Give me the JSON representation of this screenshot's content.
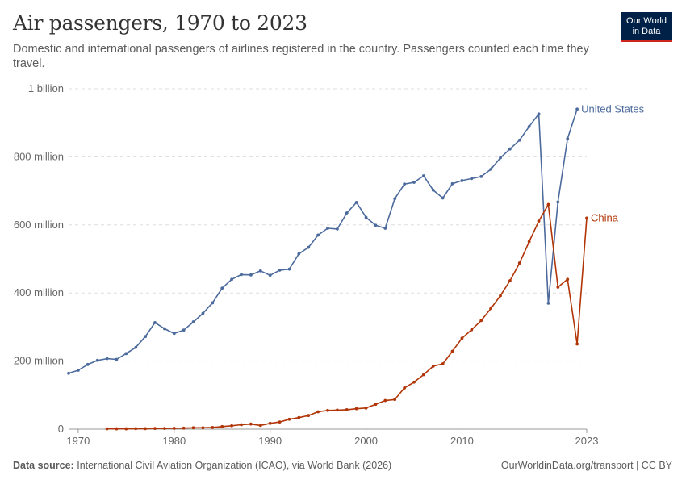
{
  "header": {
    "title": "Air passengers, 1970 to 2023",
    "subtitle": "Domestic and international passengers of airlines registered in the country. Passengers counted each time they travel.",
    "logo_line1": "Our World",
    "logo_line2": "in Data"
  },
  "footer": {
    "source_label": "Data source:",
    "source_text": "International Civil Aviation Organization (ICAO), via World Bank (2026)",
    "right_text": "OurWorldinData.org/transport | CC BY"
  },
  "chart_data": {
    "type": "line",
    "title": "Air passengers, 1970 to 2023",
    "xlabel": "",
    "ylabel": "",
    "xlim": [
      1969,
      2023
    ],
    "ylim": [
      0,
      1000000000
    ],
    "y_ticks": [
      {
        "value": 0,
        "label": "0"
      },
      {
        "value": 200000000,
        "label": "200 million"
      },
      {
        "value": 400000000,
        "label": "400 million"
      },
      {
        "value": 600000000,
        "label": "600 million"
      },
      {
        "value": 800000000,
        "label": "800 million"
      },
      {
        "value": 1000000000,
        "label": "1 billion"
      }
    ],
    "x_ticks": [
      {
        "value": 1970,
        "label": "1970"
      },
      {
        "value": 1980,
        "label": "1980"
      },
      {
        "value": 1990,
        "label": "1990"
      },
      {
        "value": 2000,
        "label": "2000"
      },
      {
        "value": 2010,
        "label": "2010"
      },
      {
        "value": 2023,
        "label": "2023"
      }
    ],
    "grid": "horizontal dashed",
    "legend": "labels at line ends (right)",
    "series": [
      {
        "name": "United States",
        "color": "#4c6a9c",
        "points": [
          [
            1969,
            164000000
          ],
          [
            1970,
            173000000
          ],
          [
            1971,
            190000000
          ],
          [
            1972,
            202000000
          ],
          [
            1973,
            207000000
          ],
          [
            1974,
            205000000
          ],
          [
            1975,
            222000000
          ],
          [
            1976,
            240000000
          ],
          [
            1977,
            272000000
          ],
          [
            1978,
            313000000
          ],
          [
            1979,
            295000000
          ],
          [
            1980,
            281000000
          ],
          [
            1981,
            291000000
          ],
          [
            1982,
            315000000
          ],
          [
            1983,
            340000000
          ],
          [
            1984,
            371000000
          ],
          [
            1985,
            414000000
          ],
          [
            1986,
            440000000
          ],
          [
            1987,
            454000000
          ],
          [
            1988,
            453000000
          ],
          [
            1989,
            465000000
          ],
          [
            1990,
            452000000
          ],
          [
            1991,
            467000000
          ],
          [
            1992,
            470000000
          ],
          [
            1993,
            515000000
          ],
          [
            1994,
            534000000
          ],
          [
            1995,
            570000000
          ],
          [
            1996,
            590000000
          ],
          [
            1997,
            588000000
          ],
          [
            1998,
            635000000
          ],
          [
            1999,
            666000000
          ],
          [
            2000,
            622000000
          ],
          [
            2001,
            599000000
          ],
          [
            2002,
            590000000
          ],
          [
            2003,
            677000000
          ],
          [
            2004,
            720000000
          ],
          [
            2005,
            725000000
          ],
          [
            2006,
            744000000
          ],
          [
            2007,
            702000000
          ],
          [
            2008,
            679000000
          ],
          [
            2009,
            721000000
          ],
          [
            2010,
            730000000
          ],
          [
            2011,
            736000000
          ],
          [
            2012,
            742000000
          ],
          [
            2013,
            763000000
          ],
          [
            2014,
            797000000
          ],
          [
            2015,
            823000000
          ],
          [
            2016,
            849000000
          ],
          [
            2017,
            889000000
          ],
          [
            2018,
            926000000
          ],
          [
            2019,
            370000000
          ],
          [
            2020,
            667000000
          ],
          [
            2021,
            853000000
          ],
          [
            2022,
            940000000
          ]
        ]
      },
      {
        "name": "China",
        "color": "#b13507",
        "points": [
          [
            1973,
            1000000
          ],
          [
            1974,
            1000000
          ],
          [
            1975,
            1000000
          ],
          [
            1976,
            1500000
          ],
          [
            1977,
            1500000
          ],
          [
            1978,
            2000000
          ],
          [
            1979,
            2000000
          ],
          [
            1980,
            2500000
          ],
          [
            1981,
            3000000
          ],
          [
            1982,
            4000000
          ],
          [
            1983,
            4000000
          ],
          [
            1984,
            5000000
          ],
          [
            1985,
            7500000
          ],
          [
            1986,
            10000000
          ],
          [
            1987,
            13000000
          ],
          [
            1988,
            15000000
          ],
          [
            1989,
            11000000
          ],
          [
            1990,
            17000000
          ],
          [
            1991,
            21000000
          ],
          [
            1992,
            29000000
          ],
          [
            1993,
            34000000
          ],
          [
            1994,
            40000000
          ],
          [
            1995,
            51000000
          ],
          [
            1996,
            55000000
          ],
          [
            1997,
            56000000
          ],
          [
            1998,
            57000000
          ],
          [
            1999,
            60000000
          ],
          [
            2000,
            62000000
          ],
          [
            2001,
            73000000
          ],
          [
            2002,
            84000000
          ],
          [
            2003,
            87000000
          ],
          [
            2004,
            121000000
          ],
          [
            2005,
            138000000
          ],
          [
            2006,
            160000000
          ],
          [
            2007,
            185000000
          ],
          [
            2008,
            192000000
          ],
          [
            2009,
            229000000
          ],
          [
            2010,
            267000000
          ],
          [
            2011,
            292000000
          ],
          [
            2012,
            319000000
          ],
          [
            2013,
            354000000
          ],
          [
            2014,
            392000000
          ],
          [
            2015,
            436000000
          ],
          [
            2016,
            488000000
          ],
          [
            2017,
            551000000
          ],
          [
            2018,
            611000000
          ],
          [
            2019,
            660000000
          ],
          [
            2020,
            417000000
          ],
          [
            2021,
            440000000
          ],
          [
            2022,
            250000000
          ],
          [
            2023,
            620000000
          ]
        ]
      }
    ]
  }
}
